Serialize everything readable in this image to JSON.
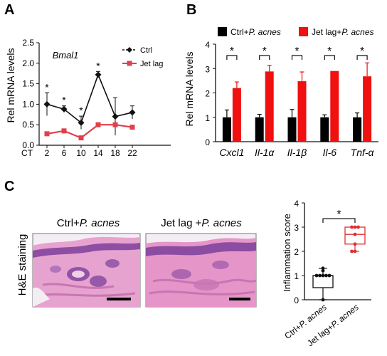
{
  "panels": {
    "a": "A",
    "b": "B",
    "c": "C"
  },
  "chart_data": [
    {
      "type": "line",
      "title": "Bmal1",
      "ylabel": "Rel mRNA levels",
      "x_prefix": "CT",
      "x": [
        2,
        6,
        10,
        14,
        18,
        22
      ],
      "ylim": [
        0,
        2.5
      ],
      "yticks": [
        "0.0",
        "0.5",
        "1.0",
        "1.5",
        "2.0",
        "2.5"
      ],
      "legend_position": "top-right",
      "significance": [
        "*",
        "*",
        "*",
        "*",
        "",
        ""
      ],
      "series": [
        {
          "name": "Ctrl",
          "color": "#111111",
          "marker": "diamond",
          "values": [
            1.0,
            0.88,
            0.55,
            1.72,
            0.7,
            0.8
          ],
          "error": [
            0.28,
            0.08,
            0.16,
            0.08,
            0.46,
            0.16
          ]
        },
        {
          "name": "Jet lag",
          "color": "#e0404a",
          "marker": "square",
          "values": [
            0.28,
            0.35,
            0.18,
            0.5,
            0.5,
            0.44
          ],
          "error": [
            0.03,
            0.03,
            0.03,
            0.03,
            0.03,
            0.03
          ]
        }
      ]
    },
    {
      "type": "bar",
      "ylabel": "Rel mRNA levels",
      "categories": [
        "Cxcl1",
        "Il-1α",
        "Il-1β",
        "Il-6",
        "Tnf-α"
      ],
      "ylim": [
        0,
        4
      ],
      "yticks": [
        "0",
        "1",
        "2",
        "3",
        "4"
      ],
      "legend_position": "top",
      "significance": [
        "*",
        "*",
        "*",
        "*",
        "*"
      ],
      "series": [
        {
          "name": "Ctrl+P. acnes",
          "color": "#000000",
          "values": [
            1.0,
            1.0,
            1.0,
            1.0,
            1.0
          ],
          "error": [
            0.3,
            0.12,
            0.32,
            0.1,
            0.18
          ]
        },
        {
          "name": "Jet lag+P. acnes",
          "color": "#f01010",
          "values": [
            2.2,
            2.88,
            2.48,
            2.9,
            2.68
          ],
          "error": [
            0.25,
            0.25,
            0.38,
            0.0,
            0.55
          ]
        }
      ]
    },
    {
      "type": "box",
      "ylabel": "Inflammation  score",
      "categories": [
        "Ctrl+P. acnes",
        "Jet lag+P. acnes"
      ],
      "ylim": [
        0,
        4
      ],
      "yticks": [
        "0",
        "1",
        "2",
        "3",
        "4"
      ],
      "significance": "*",
      "groups": [
        {
          "color": "#111111",
          "min": 0,
          "q1": 0.5,
          "median": 1.0,
          "q3": 1.0,
          "max": 1.3,
          "points": [
            1.0,
            1.0,
            1.0,
            1.0,
            1.0,
            1.2,
            1.3,
            0.0
          ]
        },
        {
          "color": "#e03030",
          "min": 2.0,
          "q1": 2.3,
          "median": 2.7,
          "q3": 3.0,
          "max": 3.0,
          "points": [
            3.0,
            3.0,
            3.0,
            2.7,
            2.3,
            2.0,
            2.0
          ]
        }
      ]
    }
  ],
  "histology": {
    "row_label": "H&E staining",
    "images": [
      {
        "title_plain": "Ctrl+",
        "title_italic": "P. acnes"
      },
      {
        "title_plain": "Jet lag +",
        "title_italic": "P. acnes"
      }
    ]
  },
  "colors": {
    "tissue": "#d98bc2",
    "tissue_dark": "#7c3f9b",
    "nuclei": "#4b2a86",
    "background": "#f7f2f6"
  }
}
